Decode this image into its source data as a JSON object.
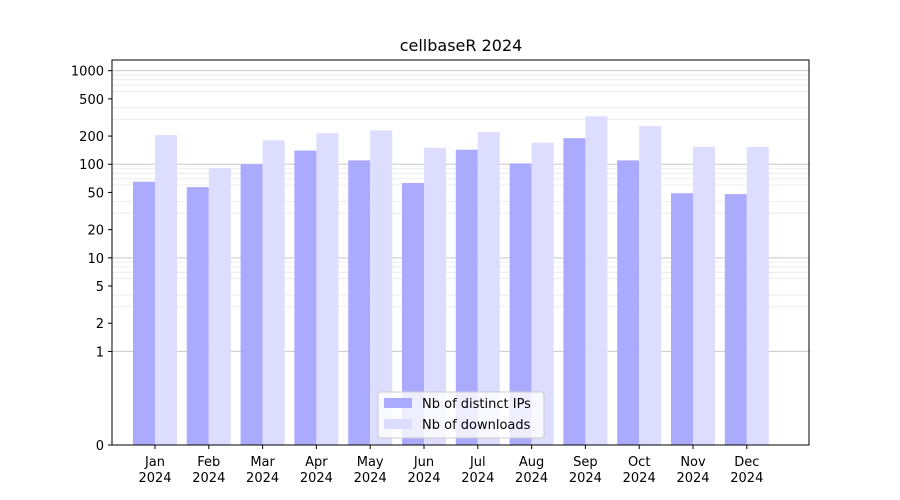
{
  "chart_data": {
    "type": "bar",
    "title": "cellbaseR 2024",
    "xlabel": "",
    "ylabel": "",
    "yscale": "symlog",
    "ylim": [
      0,
      1300
    ],
    "y_ticks": [
      0,
      1,
      2,
      5,
      10,
      20,
      50,
      100,
      200,
      500,
      1000
    ],
    "y_tick_labels": [
      "0",
      "1",
      "2",
      "5",
      "10",
      "20",
      "50",
      "100",
      "200",
      "500",
      "1000"
    ],
    "categories": [
      [
        "Jan",
        "2024"
      ],
      [
        "Feb",
        "2024"
      ],
      [
        "Mar",
        "2024"
      ],
      [
        "Apr",
        "2024"
      ],
      [
        "May",
        "2024"
      ],
      [
        "Jun",
        "2024"
      ],
      [
        "Jul",
        "2024"
      ],
      [
        "Aug",
        "2024"
      ],
      [
        "Sep",
        "2024"
      ],
      [
        "Oct",
        "2024"
      ],
      [
        "Nov",
        "2024"
      ],
      [
        "Dec",
        "2024"
      ]
    ],
    "series": [
      {
        "name": "Nb of distinct IPs",
        "color": "#aaaaff",
        "values": [
          65,
          57,
          100,
          140,
          110,
          63,
          143,
          102,
          190,
          110,
          49,
          48
        ]
      },
      {
        "name": "Nb of downloads",
        "color": "#ddddff",
        "values": [
          205,
          91,
          180,
          215,
          230,
          150,
          220,
          170,
          325,
          255,
          153,
          153
        ]
      }
    ],
    "grid": true,
    "legend_position": "bottom-center"
  }
}
